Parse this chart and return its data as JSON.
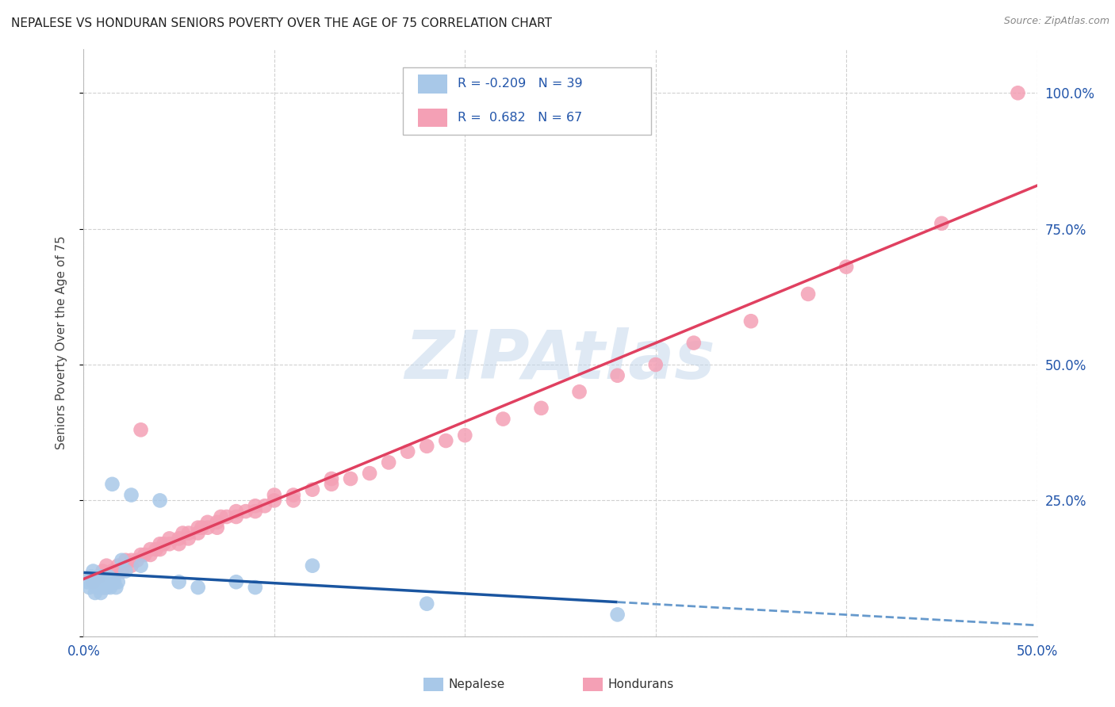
{
  "title": "NEPALESE VS HONDURAN SENIORS POVERTY OVER THE AGE OF 75 CORRELATION CHART",
  "source": "Source: ZipAtlas.com",
  "ylabel": "Seniors Poverty Over the Age of 75",
  "xlim": [
    0.0,
    0.5
  ],
  "ylim": [
    0.0,
    1.08
  ],
  "nepalese_R": -0.209,
  "nepalese_N": 39,
  "honduran_R": 0.682,
  "honduran_N": 67,
  "nepalese_color": "#a8c8e8",
  "honduran_color": "#f4a0b5",
  "nepalese_line_color": "#1a55a0",
  "honduran_line_color": "#e04060",
  "nepalese_dashed_color": "#6699cc",
  "background_color": "#ffffff",
  "grid_color": "#cccccc",
  "watermark": "ZIPAtlas",
  "watermark_color": "#c5d8ec",
  "nepalese_x": [
    0.002,
    0.003,
    0.004,
    0.005,
    0.005,
    0.006,
    0.007,
    0.007,
    0.008,
    0.008,
    0.009,
    0.009,
    0.01,
    0.01,
    0.01,
    0.011,
    0.011,
    0.012,
    0.012,
    0.013,
    0.013,
    0.014,
    0.015,
    0.015,
    0.016,
    0.017,
    0.018,
    0.02,
    0.022,
    0.025,
    0.03,
    0.04,
    0.05,
    0.06,
    0.08,
    0.09,
    0.12,
    0.18,
    0.28
  ],
  "nepalese_y": [
    0.1,
    0.09,
    0.11,
    0.1,
    0.12,
    0.08,
    0.09,
    0.1,
    0.09,
    0.11,
    0.1,
    0.08,
    0.1,
    0.09,
    0.11,
    0.09,
    0.1,
    0.1,
    0.09,
    0.1,
    0.11,
    0.09,
    0.1,
    0.28,
    0.1,
    0.09,
    0.1,
    0.14,
    0.12,
    0.26,
    0.13,
    0.25,
    0.1,
    0.09,
    0.1,
    0.09,
    0.13,
    0.06,
    0.04
  ],
  "honduran_x": [
    0.005,
    0.008,
    0.01,
    0.012,
    0.015,
    0.018,
    0.02,
    0.022,
    0.025,
    0.025,
    0.028,
    0.03,
    0.03,
    0.032,
    0.035,
    0.035,
    0.038,
    0.04,
    0.04,
    0.042,
    0.045,
    0.045,
    0.05,
    0.05,
    0.052,
    0.055,
    0.055,
    0.06,
    0.06,
    0.062,
    0.065,
    0.065,
    0.07,
    0.07,
    0.072,
    0.075,
    0.08,
    0.08,
    0.085,
    0.09,
    0.09,
    0.095,
    0.1,
    0.1,
    0.11,
    0.11,
    0.12,
    0.13,
    0.13,
    0.14,
    0.15,
    0.16,
    0.17,
    0.18,
    0.19,
    0.2,
    0.22,
    0.24,
    0.26,
    0.28,
    0.3,
    0.32,
    0.35,
    0.38,
    0.4,
    0.45,
    0.49
  ],
  "honduran_y": [
    0.1,
    0.11,
    0.12,
    0.13,
    0.12,
    0.13,
    0.12,
    0.14,
    0.13,
    0.14,
    0.14,
    0.15,
    0.38,
    0.15,
    0.15,
    0.16,
    0.16,
    0.16,
    0.17,
    0.17,
    0.17,
    0.18,
    0.17,
    0.18,
    0.19,
    0.18,
    0.19,
    0.19,
    0.2,
    0.2,
    0.2,
    0.21,
    0.2,
    0.21,
    0.22,
    0.22,
    0.22,
    0.23,
    0.23,
    0.23,
    0.24,
    0.24,
    0.25,
    0.26,
    0.25,
    0.26,
    0.27,
    0.28,
    0.29,
    0.29,
    0.3,
    0.32,
    0.34,
    0.35,
    0.36,
    0.37,
    0.4,
    0.42,
    0.45,
    0.48,
    0.5,
    0.54,
    0.58,
    0.63,
    0.68,
    0.76,
    1.0
  ]
}
